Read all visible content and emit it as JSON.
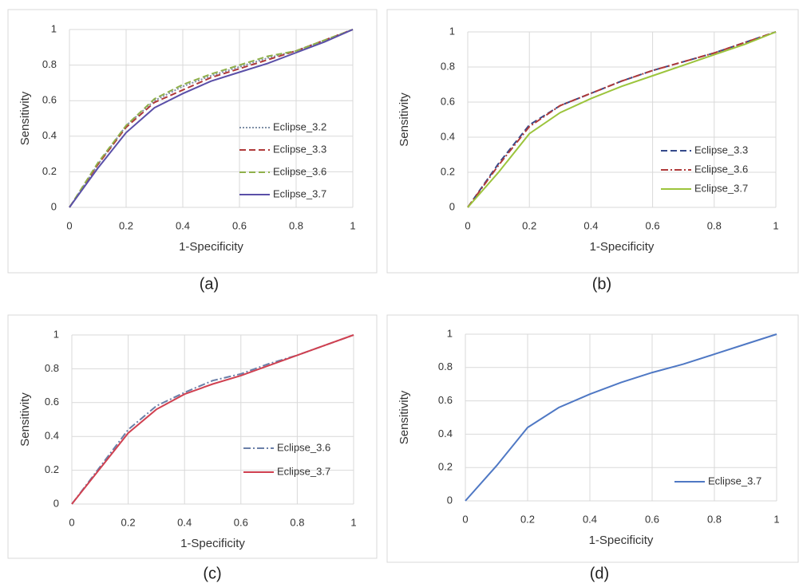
{
  "chart_data": [
    {
      "type": "line",
      "caption": "(a)",
      "xlabel": "1-Specificity",
      "ylabel": "Sensitivity",
      "x": [
        0,
        0.1,
        0.2,
        0.3,
        0.4,
        0.5,
        0.6,
        0.7,
        0.8,
        0.9,
        1
      ],
      "xlim": [
        0,
        1
      ],
      "ylim": [
        0,
        1
      ],
      "xticks": [
        0,
        0.2,
        0.4,
        0.6,
        0.8,
        1
      ],
      "yticks": [
        0,
        0.2,
        0.4,
        0.6,
        0.8,
        1
      ],
      "grid": true,
      "legend": "lower-right",
      "series": [
        {
          "name": "Eclipse_3.2",
          "color": "#7f8fa6",
          "style": "dotted",
          "values": [
            0,
            0.24,
            0.46,
            0.6,
            0.68,
            0.74,
            0.79,
            0.84,
            0.88,
            0.94,
            1
          ]
        },
        {
          "name": "Eclipse_3.3",
          "color": "#b03a3a",
          "style": "dashed",
          "values": [
            0,
            0.24,
            0.45,
            0.59,
            0.66,
            0.73,
            0.78,
            0.83,
            0.88,
            0.94,
            1
          ]
        },
        {
          "name": "Eclipse_3.6",
          "color": "#8fb04a",
          "style": "dashed",
          "values": [
            0,
            0.25,
            0.46,
            0.61,
            0.69,
            0.75,
            0.8,
            0.85,
            0.88,
            0.94,
            1
          ]
        },
        {
          "name": "Eclipse_3.7",
          "color": "#5a4fa8",
          "style": "solid",
          "values": [
            0,
            0.22,
            0.42,
            0.56,
            0.64,
            0.71,
            0.76,
            0.81,
            0.87,
            0.93,
            1
          ]
        }
      ]
    },
    {
      "type": "line",
      "caption": "(b)",
      "xlabel": "1-Specificity",
      "ylabel": "Sensitivity",
      "x": [
        0,
        0.1,
        0.2,
        0.3,
        0.4,
        0.5,
        0.6,
        0.7,
        0.8,
        0.9,
        1
      ],
      "xlim": [
        0,
        1
      ],
      "ylim": [
        0,
        1
      ],
      "xticks": [
        0,
        0.2,
        0.4,
        0.6,
        0.8,
        1
      ],
      "yticks": [
        0,
        0.2,
        0.4,
        0.6,
        0.8,
        1
      ],
      "grid": true,
      "legend": "lower-right",
      "series": [
        {
          "name": "Eclipse_3.3",
          "color": "#34498a",
          "style": "dashed",
          "values": [
            0,
            0.25,
            0.47,
            0.58,
            0.65,
            0.72,
            0.78,
            0.83,
            0.88,
            0.94,
            1
          ]
        },
        {
          "name": "Eclipse_3.6",
          "color": "#b03a3a",
          "style": "dashdot",
          "values": [
            0,
            0.24,
            0.46,
            0.58,
            0.65,
            0.72,
            0.78,
            0.83,
            0.88,
            0.94,
            1
          ]
        },
        {
          "name": "Eclipse_3.7",
          "color": "#9cc43c",
          "style": "solid",
          "values": [
            0,
            0.2,
            0.42,
            0.54,
            0.62,
            0.69,
            0.75,
            0.81,
            0.87,
            0.93,
            1
          ]
        }
      ]
    },
    {
      "type": "line",
      "caption": "(c)",
      "xlabel": "1-Specificity",
      "ylabel": "Sensitivity",
      "x": [
        0,
        0.1,
        0.2,
        0.3,
        0.4,
        0.5,
        0.6,
        0.7,
        0.8,
        0.9,
        1
      ],
      "xlim": [
        0,
        1
      ],
      "ylim": [
        0,
        1
      ],
      "xticks": [
        0,
        0.2,
        0.4,
        0.6,
        0.8,
        1
      ],
      "yticks": [
        0,
        0.2,
        0.4,
        0.6,
        0.8,
        1
      ],
      "grid": true,
      "legend": "lower-right",
      "series": [
        {
          "name": "Eclipse_3.6",
          "color": "#6a7fa8",
          "style": "dashdot",
          "values": [
            0,
            0.22,
            0.44,
            0.58,
            0.66,
            0.73,
            0.77,
            0.83,
            0.88,
            0.94,
            1
          ]
        },
        {
          "name": "Eclipse_3.7",
          "color": "#d04050",
          "style": "solid",
          "values": [
            0,
            0.21,
            0.42,
            0.56,
            0.65,
            0.71,
            0.76,
            0.82,
            0.88,
            0.94,
            1
          ]
        }
      ]
    },
    {
      "type": "line",
      "caption": "(d)",
      "xlabel": "1-Specificity",
      "ylabel": "Sensitivity",
      "x": [
        0,
        0.1,
        0.2,
        0.3,
        0.4,
        0.5,
        0.6,
        0.7,
        0.8,
        0.9,
        1
      ],
      "xlim": [
        0,
        1
      ],
      "ylim": [
        0,
        1
      ],
      "xticks": [
        0,
        0.2,
        0.4,
        0.6,
        0.8,
        1
      ],
      "yticks": [
        0,
        0.2,
        0.4,
        0.6,
        0.8,
        1
      ],
      "grid": true,
      "legend": "lower-right",
      "series": [
        {
          "name": "Eclipse_3.7",
          "color": "#4f78c4",
          "style": "solid",
          "values": [
            0,
            0.21,
            0.44,
            0.56,
            0.64,
            0.71,
            0.77,
            0.82,
            0.88,
            0.94,
            1
          ]
        }
      ]
    }
  ]
}
